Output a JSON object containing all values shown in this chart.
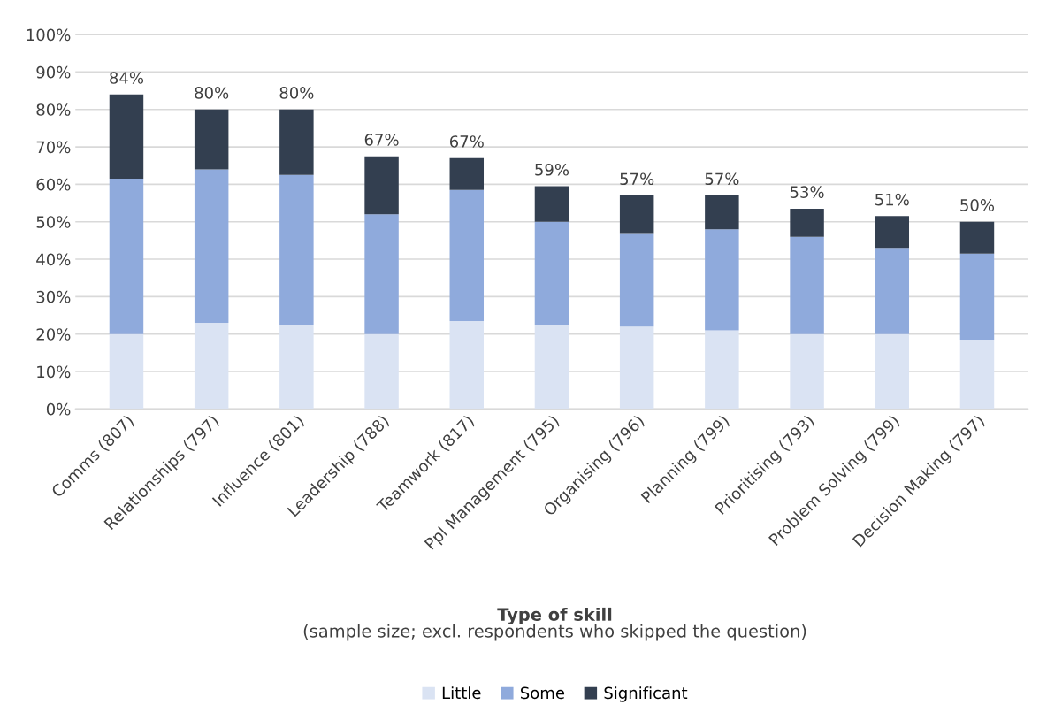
{
  "chart_data": {
    "type": "bar",
    "stacked": true,
    "categories": [
      "Comms (807)",
      "Relationships (797)",
      "Influence (801)",
      "Leadership (788)",
      "Teamwork (817)",
      "Ppl Management (795)",
      "Organising (796)",
      "Planning (799)",
      "Prioritising (793)",
      "Problem Solving (799)",
      "Decision Making (797)"
    ],
    "series": [
      {
        "name": "Little",
        "color": "#dae3f3",
        "values": [
          20,
          23,
          22.5,
          20,
          23.5,
          22.5,
          22,
          21,
          20,
          20,
          18.5
        ]
      },
      {
        "name": "Some",
        "color": "#8faadc",
        "values": [
          41.5,
          41,
          40,
          32,
          35,
          27.5,
          25,
          27,
          26,
          23,
          23
        ]
      },
      {
        "name": "Significant",
        "color": "#333f50",
        "values": [
          22.5,
          16,
          17.5,
          15.5,
          8.5,
          9.5,
          10,
          9,
          7.5,
          8.5,
          8.5
        ]
      }
    ],
    "totals": [
      "84%",
      "80%",
      "80%",
      "67%",
      "67%",
      "59%",
      "57%",
      "57%",
      "53%",
      "51%",
      "50%"
    ],
    "xlabel": "Type of skill",
    "annotations": [
      "(sample size; excl. respondents who skipped the question)"
    ],
    "ylim": [
      0,
      100
    ],
    "yticks": [
      {
        "value": 0,
        "label": "0%"
      },
      {
        "value": 10,
        "label": "10%"
      },
      {
        "value": 20,
        "label": "20%"
      },
      {
        "value": 30,
        "label": "30%"
      },
      {
        "value": 40,
        "label": "40%"
      },
      {
        "value": 50,
        "label": "50%"
      },
      {
        "value": 60,
        "label": "60%"
      },
      {
        "value": 70,
        "label": "70%"
      },
      {
        "value": 80,
        "label": "80%"
      },
      {
        "value": 90,
        "label": "90%"
      },
      {
        "value": 100,
        "label": "100%"
      }
    ],
    "grid": "y",
    "legend": "bottom"
  }
}
